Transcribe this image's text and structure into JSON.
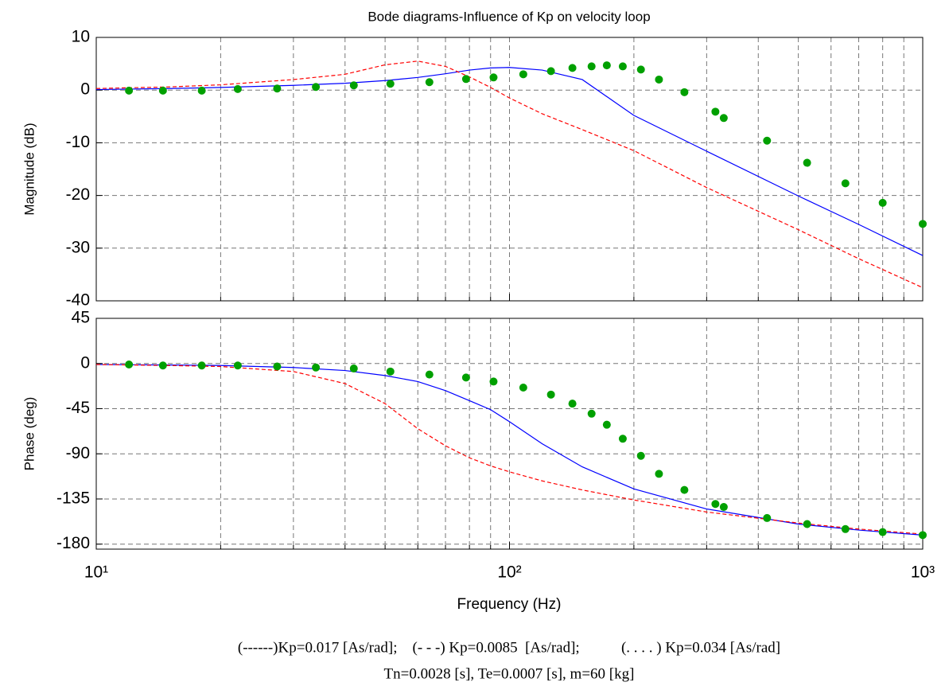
{
  "chart_data": [
    {
      "type": "line",
      "title": "Bode diagrams-Influence of Kp on velocity loop",
      "ylabel": "Magnitude (dB)",
      "xscale": "log",
      "xlim": [
        10,
        1000
      ],
      "xticks": [
        10,
        100,
        1000
      ],
      "xminorticks": [
        20,
        30,
        40,
        50,
        60,
        70,
        80,
        90,
        200,
        300,
        400,
        500,
        600,
        700,
        800,
        900
      ],
      "ylim": [
        -40,
        10
      ],
      "yticks": [
        10,
        0,
        -10,
        -20,
        -30,
        -40
      ],
      "grid": true,
      "series": [
        {
          "color": "#0000ff",
          "style": "solid",
          "x": [
            10,
            15,
            20,
            30,
            40,
            50,
            60,
            70,
            80,
            90,
            100,
            120,
            150,
            200,
            300,
            500,
            700,
            1000
          ],
          "values": [
            0.1,
            0.3,
            0.5,
            0.9,
            1.3,
            1.8,
            2.4,
            3.1,
            3.8,
            4.2,
            4.3,
            3.8,
            2,
            -4.8,
            -11.6,
            -20.1,
            -25.5,
            -31.4
          ]
        },
        {
          "color": "#ff0000",
          "style": "dashed",
          "x": [
            10,
            15,
            20,
            30,
            40,
            50,
            60,
            70,
            80,
            90,
            100,
            120,
            150,
            200,
            300,
            500,
            700,
            1000
          ],
          "values": [
            0.3,
            0.6,
            1,
            2,
            3,
            4.8,
            5.5,
            4.5,
            2.5,
            0.5,
            -1.5,
            -4.5,
            -7.5,
            -11.5,
            -18.5,
            -26.5,
            -32,
            -37.5
          ]
        },
        {
          "color": "#00a000",
          "style": "dots",
          "x": [
            12,
            14.5,
            18,
            22,
            27.4,
            34,
            42,
            51.5,
            64,
            78.5,
            91.5,
            108,
            126,
            142,
            158,
            172,
            188,
            208,
            230,
            265,
            315,
            330,
            420,
            525,
            650,
            800,
            1000
          ],
          "values": [
            -0.1,
            -0.1,
            -0.1,
            0.2,
            0.3,
            0.6,
            0.9,
            1.2,
            1.5,
            2.1,
            2.4,
            3,
            3.6,
            4.2,
            4.5,
            4.7,
            4.5,
            3.9,
            2,
            -0.4,
            -4.1,
            -5.3,
            -9.6,
            -13.8,
            -17.7,
            -21.4,
            -25.4
          ]
        }
      ]
    },
    {
      "type": "line",
      "ylabel": "Phase (deg)",
      "xlabel": "Frequency  (Hz)",
      "xscale": "log",
      "xlim": [
        10,
        1000
      ],
      "xticks": [
        {
          "value": 10,
          "label": "10¹"
        },
        {
          "value": 100,
          "label": "10²"
        },
        {
          "value": 1000,
          "label": "10³"
        }
      ],
      "xminorticks": [
        20,
        30,
        40,
        50,
        60,
        70,
        80,
        90,
        200,
        300,
        400,
        500,
        600,
        700,
        800,
        900
      ],
      "ylim": [
        -185,
        45
      ],
      "yticks": [
        45,
        0,
        -45,
        -90,
        -135,
        -180
      ],
      "grid": true,
      "series": [
        {
          "color": "#0000ff",
          "style": "solid",
          "x": [
            10,
            15,
            20,
            30,
            40,
            50,
            60,
            70,
            80,
            90,
            100,
            120,
            150,
            200,
            300,
            500,
            700,
            1000
          ],
          "values": [
            -1,
            -1.5,
            -2,
            -4,
            -7,
            -12,
            -18,
            -27,
            -37,
            -46,
            -58,
            -80,
            -103,
            -125,
            -145,
            -160,
            -166,
            -171
          ]
        },
        {
          "color": "#ff0000",
          "style": "dashed",
          "x": [
            10,
            15,
            20,
            30,
            40,
            50,
            60,
            70,
            80,
            90,
            100,
            120,
            150,
            200,
            300,
            500,
            700,
            1000
          ],
          "values": [
            -1,
            -2,
            -3,
            -8,
            -20,
            -40,
            -65,
            -82,
            -94,
            -102,
            -108,
            -117,
            -126,
            -136,
            -148,
            -159,
            -165,
            -170
          ]
        },
        {
          "color": "#00a000",
          "style": "dots",
          "x": [
            12,
            14.5,
            18,
            22,
            27.4,
            34,
            42,
            51.5,
            64,
            78.5,
            91.5,
            108,
            126,
            142,
            158,
            172,
            188,
            208,
            230,
            265,
            315,
            330,
            420,
            525,
            650,
            800,
            1000
          ],
          "values": [
            -1,
            -2,
            -2,
            -2,
            -3,
            -4,
            -5,
            -8,
            -11,
            -14,
            -18,
            -24,
            -31,
            -40,
            -50,
            -61,
            -75,
            -92,
            -110,
            -126,
            -140,
            -143,
            -154,
            -160,
            -165,
            -168,
            -171
          ]
        }
      ]
    }
  ],
  "caption": [
    "(------)Kp=0.017 [As/rad];    (- - -) Kp=0.0085  [As/rad];           (. . . . ) Kp=0.034 [As/rad]",
    "Tn=0.0028 [s], Te=0.0007 [s], m=60 [kg]"
  ]
}
